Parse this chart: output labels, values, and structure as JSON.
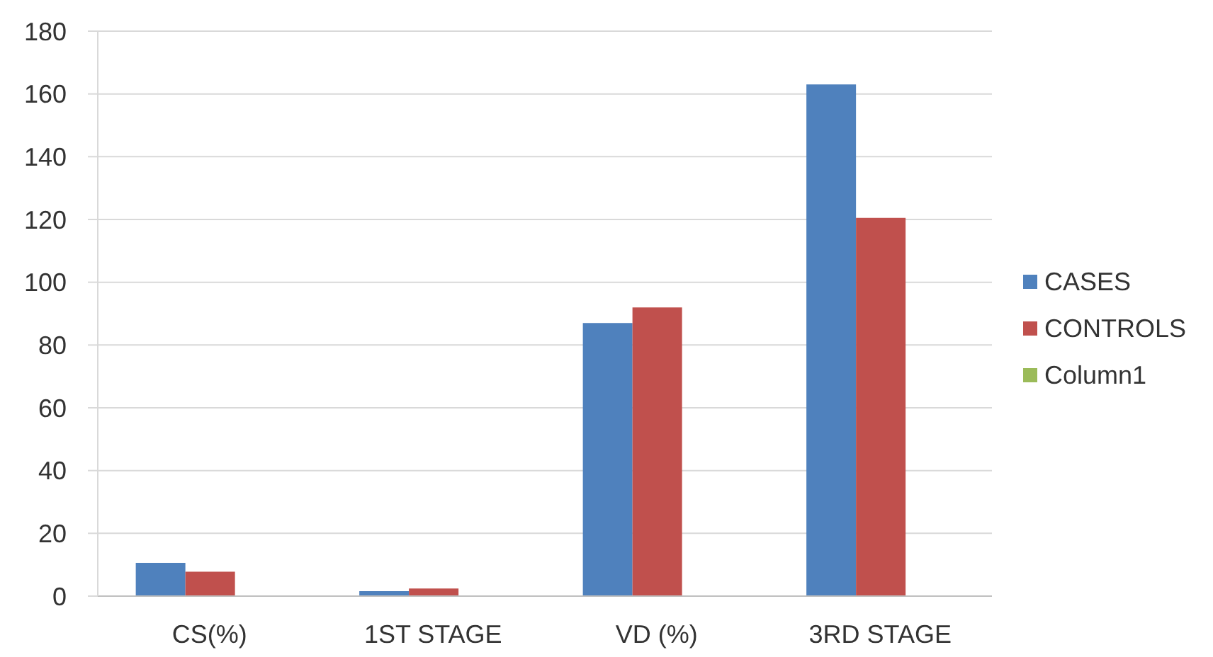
{
  "chart_data": {
    "type": "bar",
    "categories": [
      "CS(%)",
      "1ST STAGE",
      "VD (%)",
      "3RD STAGE"
    ],
    "series": [
      {
        "name": "CASES",
        "color": "#4f81bd",
        "values": [
          10.6,
          1.6,
          87,
          163
        ]
      },
      {
        "name": "CONTROLS",
        "color": "#c0504d",
        "values": [
          7.8,
          2.4,
          92,
          120.5
        ]
      },
      {
        "name": "Column1",
        "color": "#9bbb59",
        "values": [
          null,
          null,
          null,
          null
        ]
      }
    ],
    "ylim": [
      0,
      180
    ],
    "yticks": [
      0,
      20,
      40,
      60,
      80,
      100,
      120,
      140,
      160,
      180
    ],
    "grid": "y",
    "legend": "right"
  }
}
